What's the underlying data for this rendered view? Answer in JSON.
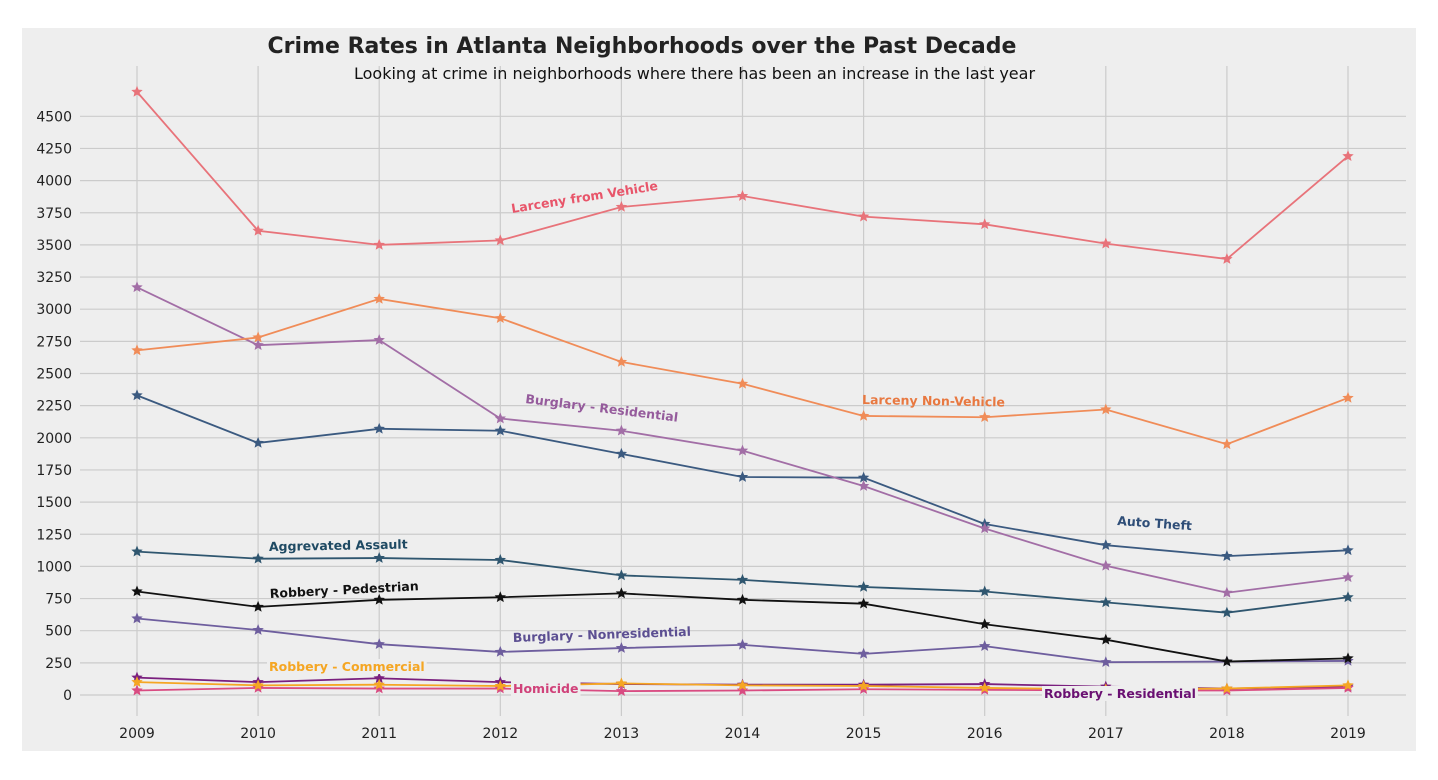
{
  "chart_data": {
    "type": "line",
    "title": "Crime Rates in Atlanta Neighborhoods over the Past Decade",
    "subtitle": "Looking at crime in neighborhoods where there has been an increase in the last year",
    "xlabel": "",
    "ylabel": "",
    "x": [
      2009,
      2010,
      2011,
      2012,
      2013,
      2014,
      2015,
      2016,
      2017,
      2018,
      2019
    ],
    "x_ticks": [
      "2009",
      "2010",
      "2011",
      "2012",
      "2013",
      "2014",
      "2015",
      "2016",
      "2017",
      "2018",
      "2019"
    ],
    "y_ticks": [
      "0",
      "250",
      "500",
      "750",
      "1000",
      "1250",
      "1500",
      "1750",
      "2000",
      "2250",
      "2500",
      "2750",
      "3000",
      "3250",
      "3500",
      "3750",
      "4000",
      "4250",
      "4500"
    ],
    "ylim": [
      -100,
      4820
    ],
    "grid": true,
    "marker": "star",
    "series": [
      {
        "name": "Larceny from Vehicle",
        "color": "#e8737a",
        "label_color": "#e8556a",
        "label_rotate": -9,
        "values": [
          4690,
          3610,
          3500,
          3535,
          3795,
          3880,
          3720,
          3660,
          3510,
          3390,
          4190
        ]
      },
      {
        "name": "Larceny Non-Vehicle",
        "color": "#f08c58",
        "label_color": "#e87840",
        "label_rotate": 1,
        "values": [
          2680,
          2780,
          3080,
          2930,
          2590,
          2420,
          2170,
          2160,
          2220,
          1950,
          2310
        ]
      },
      {
        "name": "Burglary - Residential",
        "color": "#a26ea6",
        "label_color": "#955b9c",
        "label_rotate": 7,
        "values": [
          3170,
          2720,
          2760,
          2150,
          2055,
          1900,
          1625,
          1295,
          1005,
          795,
          915
        ]
      },
      {
        "name": "Auto Theft",
        "color": "#3b5a80",
        "label_color": "#2f4e78",
        "label_rotate": 4,
        "values": [
          2330,
          1960,
          2070,
          2055,
          1875,
          1695,
          1690,
          1330,
          1165,
          1080,
          1125
        ]
      },
      {
        "name": "Aggrevated Assault",
        "color": "#2f566f",
        "label_color": "#1f4a63",
        "label_rotate": -1,
        "values": [
          1115,
          1060,
          1065,
          1050,
          930,
          895,
          840,
          805,
          720,
          640,
          760
        ]
      },
      {
        "name": "Robbery - Pedestrian",
        "color": "#111111",
        "label_color": "#111111",
        "label_rotate": -3,
        "values": [
          805,
          685,
          740,
          760,
          790,
          740,
          710,
          550,
          430,
          260,
          285
        ]
      },
      {
        "name": "Burglary - Nonresidential",
        "color": "#6e5e9e",
        "label_color": "#5c4f92",
        "label_rotate": -2,
        "values": [
          595,
          505,
          395,
          335,
          365,
          390,
          320,
          380,
          255,
          260,
          265
        ]
      },
      {
        "name": "Robbery - Commercial",
        "color": "#f5a623",
        "label_color": "#f5a623",
        "label_rotate": 0,
        "values": [
          100,
          75,
          80,
          70,
          90,
          75,
          70,
          55,
          45,
          50,
          75
        ]
      },
      {
        "name": "Homicide",
        "color": "#d94c82",
        "label_color": "#d0427a",
        "label_rotate": 0,
        "values": [
          35,
          55,
          50,
          50,
          30,
          35,
          45,
          40,
          35,
          35,
          55
        ]
      },
      {
        "name": "Robbery - Residential",
        "color": "#7a1f7e",
        "label_color": "#6a1072",
        "label_rotate": 0,
        "values": [
          135,
          100,
          130,
          100,
          85,
          80,
          80,
          85,
          65,
          50,
          65
        ]
      }
    ]
  }
}
